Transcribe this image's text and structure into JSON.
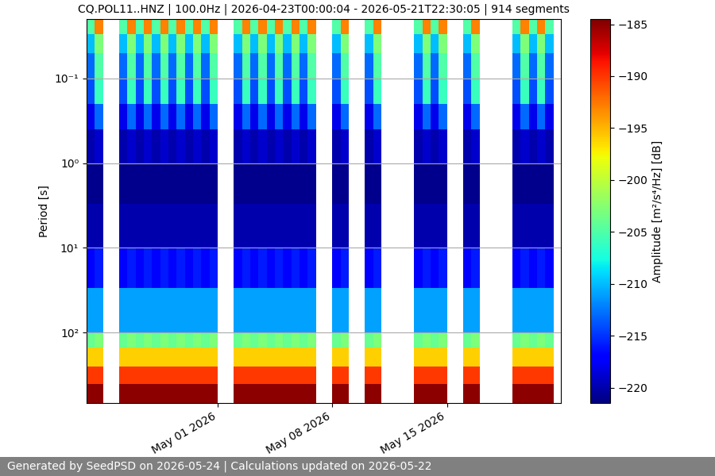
{
  "chart_data": {
    "type": "heatmap",
    "title": "CQ.POL11..HNZ | 100.0Hz | 2026-04-23T00:00:04 - 2026-05-21T22:30:05 | 914 segments",
    "y_label": "Period [s]",
    "footer": "Generated by SeedPSD on 2026-05-24 | Calculations updated on 2026-05-22",
    "log": "y",
    "grid": true,
    "color": "jet",
    "x": [
      "2026-04-23T00:00",
      "2026-04-23T12:00",
      "2026-04-24T00:00",
      "2026-04-24T12:00",
      "2026-04-25T00:00",
      "2026-04-25T12:00",
      "2026-04-26T00:00",
      "2026-04-26T12:00",
      "2026-04-27T00:00",
      "2026-04-27T12:00",
      "2026-04-28T00:00",
      "2026-04-28T12:00",
      "2026-04-29T00:00",
      "2026-04-29T12:00",
      "2026-04-30T00:00",
      "2026-04-30T12:00",
      "2026-05-01T00:00",
      "2026-05-01T12:00",
      "2026-05-02T00:00",
      "2026-05-02T12:00",
      "2026-05-03T00:00",
      "2026-05-03T12:00",
      "2026-05-04T00:00",
      "2026-05-04T12:00",
      "2026-05-05T00:00",
      "2026-05-05T12:00",
      "2026-05-06T00:00",
      "2026-05-06T12:00",
      "2026-05-07T00:00",
      "2026-05-07T12:00",
      "2026-05-08T00:00",
      "2026-05-08T12:00",
      "2026-05-09T00:00",
      "2026-05-09T12:00",
      "2026-05-10T00:00",
      "2026-05-10T12:00",
      "2026-05-11T00:00",
      "2026-05-11T12:00",
      "2026-05-12T00:00",
      "2026-05-12T12:00",
      "2026-05-13T00:00",
      "2026-05-13T12:00",
      "2026-05-14T00:00",
      "2026-05-14T12:00",
      "2026-05-15T00:00",
      "2026-05-15T12:00",
      "2026-05-16T00:00",
      "2026-05-16T12:00",
      "2026-05-17T00:00",
      "2026-05-17T12:00",
      "2026-05-18T00:00",
      "2026-05-18T12:00",
      "2026-05-19T00:00",
      "2026-05-19T12:00",
      "2026-05-20T00:00",
      "2026-05-20T12:00",
      "2026-05-21T00:00",
      "2026-05-21T12:00"
    ],
    "y": [
      0.02,
      0.03,
      0.05,
      0.1,
      0.2,
      0.4,
      1,
      3,
      10,
      30,
      100,
      150,
      250,
      400,
      680
    ],
    "xlim": [
      "2026-04-23T00:00:04",
      "2026-05-21T22:30:05"
    ],
    "xticks": [
      {
        "value": "2026-05-01",
        "label": "May 01 2026"
      },
      {
        "value": "2026-05-08",
        "label": "May 08 2026"
      },
      {
        "value": "2026-05-15",
        "label": "May 15 2026"
      }
    ],
    "ylim": [
      680,
      0.02
    ],
    "yticks": [
      {
        "value": 0.1,
        "label": "10⁻¹"
      },
      {
        "value": 1,
        "label": "10⁰"
      },
      {
        "value": 10,
        "label": "10¹"
      },
      {
        "value": 100,
        "label": "10²"
      }
    ],
    "colorbar": {
      "label": "Amplitude [m²/s⁴/Hz] [dB]",
      "range": [
        -221.5,
        -184.5
      ],
      "ticks": [
        {
          "value": -220,
          "label": "−220"
        },
        {
          "value": -215,
          "label": "−215"
        },
        {
          "value": -210,
          "label": "−210"
        },
        {
          "value": -205,
          "label": "−205"
        },
        {
          "value": -200,
          "label": "−200"
        },
        {
          "value": -195,
          "label": "−195"
        },
        {
          "value": -190,
          "label": "−190"
        },
        {
          "value": -185,
          "label": "−185"
        }
      ]
    },
    "cells": [
      [
        -205,
        -193,
        null,
        null,
        -205,
        -193,
        -205,
        -193,
        -205,
        -193,
        -205,
        -193,
        -205,
        -193,
        -205,
        -193,
        null,
        null,
        -205,
        -193,
        -205,
        -193,
        -205,
        -193,
        -205,
        -193,
        -205,
        -193,
        null,
        null,
        -205,
        -193,
        null,
        null,
        -205,
        -193,
        null,
        null,
        null,
        null,
        -205,
        -193,
        -205,
        -193,
        null,
        null,
        -205,
        -193,
        null,
        null,
        null,
        null,
        -205,
        -193,
        -205,
        -193,
        -205
      ],
      [
        -210,
        -203,
        null,
        null,
        -210,
        -203,
        -210,
        -203,
        -210,
        -203,
        -210,
        -203,
        -210,
        -203,
        -210,
        -203,
        null,
        null,
        -210,
        -203,
        -210,
        -203,
        -210,
        -203,
        -210,
        -203,
        -210,
        -203,
        null,
        null,
        -210,
        -203,
        null,
        null,
        -210,
        -203,
        null,
        null,
        null,
        null,
        -210,
        -203,
        -210,
        -203,
        null,
        null,
        -210,
        -203,
        null,
        null,
        null,
        null,
        -210,
        -203,
        -210,
        -203,
        -210
      ],
      [
        -213,
        -205,
        null,
        null,
        -213,
        -205,
        -213,
        -205,
        -213,
        -205,
        -213,
        -205,
        -213,
        -205,
        -213,
        -205,
        null,
        null,
        -213,
        -205,
        -213,
        -205,
        -213,
        -205,
        -213,
        -205,
        -213,
        -205,
        null,
        null,
        -213,
        -205,
        null,
        null,
        -213,
        -205,
        null,
        null,
        null,
        null,
        -213,
        -205,
        -213,
        -205,
        null,
        null,
        -213,
        -205,
        null,
        null,
        null,
        null,
        -213,
        -205,
        -213,
        -205,
        -213
      ],
      [
        -214,
        -206,
        null,
        null,
        -214,
        -206,
        -214,
        -206,
        -214,
        -206,
        -214,
        -206,
        -214,
        -206,
        -214,
        -206,
        null,
        null,
        -214,
        -206,
        -214,
        -206,
        -214,
        -206,
        -214,
        -206,
        -214,
        -206,
        null,
        null,
        -214,
        -206,
        null,
        null,
        -214,
        -206,
        null,
        null,
        null,
        null,
        -214,
        -206,
        -214,
        -206,
        null,
        null,
        -214,
        -206,
        null,
        null,
        null,
        null,
        -214,
        -206,
        -214,
        -206,
        -214
      ],
      [
        -218,
        -213,
        null,
        null,
        -218,
        -213,
        -218,
        -213,
        -218,
        -213,
        -218,
        -213,
        -218,
        -213,
        -218,
        -213,
        null,
        null,
        -218,
        -213,
        -218,
        -213,
        -218,
        -213,
        -218,
        -213,
        -218,
        -213,
        null,
        null,
        -218,
        -213,
        null,
        null,
        -218,
        -213,
        null,
        null,
        null,
        null,
        -218,
        -213,
        -218,
        -213,
        null,
        null,
        -218,
        -213,
        null,
        null,
        null,
        null,
        -218,
        -213,
        -218,
        -213,
        -218
      ],
      [
        -220,
        -219,
        null,
        null,
        -220,
        -219,
        -220,
        -219,
        -220,
        -219,
        -220,
        -219,
        -220,
        -219,
        -220,
        -219,
        null,
        null,
        -220,
        -219,
        -220,
        -219,
        -220,
        -219,
        -220,
        -219,
        -220,
        -219,
        null,
        null,
        -220,
        -219,
        null,
        null,
        -220,
        -219,
        null,
        null,
        null,
        null,
        -220,
        -219,
        -220,
        -219,
        null,
        null,
        -220,
        -219,
        null,
        null,
        null,
        null,
        -220,
        -219,
        -220,
        -219,
        -220
      ],
      [
        -221,
        -221,
        null,
        null,
        -221,
        -221,
        -221,
        -221,
        -221,
        -221,
        -221,
        -221,
        -221,
        -221,
        -221,
        -221,
        null,
        null,
        -221,
        -221,
        -221,
        -221,
        -221,
        -221,
        -221,
        -221,
        -221,
        -221,
        null,
        null,
        -221,
        -221,
        null,
        null,
        -221,
        -221,
        null,
        null,
        null,
        null,
        -221,
        -221,
        -221,
        -221,
        null,
        null,
        -221,
        -221,
        null,
        null,
        null,
        null,
        -221,
        -221,
        -221,
        -221,
        -221
      ],
      [
        -220,
        -220,
        null,
        null,
        -220,
        -220,
        -220,
        -220,
        -220,
        -220,
        -220,
        -220,
        -220,
        -220,
        -220,
        -220,
        null,
        null,
        -220,
        -220,
        -220,
        -220,
        -220,
        -220,
        -220,
        -220,
        -220,
        -220,
        null,
        null,
        -220,
        -220,
        null,
        null,
        -220,
        -220,
        null,
        null,
        null,
        null,
        -220,
        -220,
        -220,
        -220,
        null,
        null,
        -220,
        -220,
        null,
        null,
        null,
        null,
        -220,
        -220,
        -220,
        -220,
        -220
      ],
      [
        -217,
        -216,
        null,
        null,
        -217,
        -216,
        -217,
        -216,
        -217,
        -216,
        -217,
        -216,
        -217,
        -216,
        -217,
        -216,
        null,
        null,
        -217,
        -216,
        -217,
        -216,
        -217,
        -216,
        -217,
        -216,
        -217,
        -216,
        null,
        null,
        -217,
        -216,
        null,
        null,
        -217,
        -216,
        null,
        null,
        null,
        null,
        -217,
        -216,
        -217,
        -216,
        null,
        null,
        -217,
        -216,
        null,
        null,
        null,
        null,
        -217,
        -216,
        -217,
        -216,
        -217
      ],
      [
        -211,
        -211,
        null,
        null,
        -211,
        -211,
        -211,
        -211,
        -211,
        -211,
        -211,
        -211,
        -211,
        -211,
        -211,
        -211,
        null,
        null,
        -211,
        -211,
        -211,
        -211,
        -211,
        -211,
        -211,
        -211,
        -211,
        -211,
        null,
        null,
        -211,
        -211,
        null,
        null,
        -211,
        -211,
        null,
        null,
        null,
        null,
        -211,
        -211,
        -211,
        -211,
        null,
        null,
        -211,
        -211,
        null,
        null,
        null,
        null,
        -211,
        -211,
        -211,
        -211,
        -211
      ],
      [
        -204,
        -203,
        null,
        null,
        -204,
        -203,
        -204,
        -203,
        -204,
        -203,
        -204,
        -203,
        -204,
        -203,
        -204,
        -203,
        null,
        null,
        -204,
        -203,
        -204,
        -203,
        -204,
        -203,
        -204,
        -203,
        -204,
        -203,
        null,
        null,
        -204,
        -203,
        null,
        null,
        -204,
        -203,
        null,
        null,
        null,
        null,
        -204,
        -203,
        -204,
        -203,
        null,
        null,
        -204,
        -203,
        null,
        null,
        null,
        null,
        -204,
        -203,
        -204,
        -203,
        -204
      ],
      [
        -196,
        -196,
        null,
        null,
        -196,
        -196,
        -196,
        -196,
        -196,
        -196,
        -196,
        -196,
        -196,
        -196,
        -196,
        -196,
        null,
        null,
        -196,
        -196,
        -196,
        -196,
        -196,
        -196,
        -196,
        -196,
        -196,
        -196,
        null,
        null,
        -196,
        -196,
        null,
        null,
        -196,
        -196,
        null,
        null,
        null,
        null,
        -196,
        -196,
        -196,
        -196,
        null,
        null,
        -196,
        -196,
        null,
        null,
        null,
        null,
        -196,
        -196,
        -196,
        -196,
        -196
      ],
      [
        -190,
        -190,
        null,
        null,
        -190,
        -190,
        -190,
        -190,
        -190,
        -190,
        -190,
        -190,
        -190,
        -190,
        -190,
        -190,
        null,
        null,
        -190,
        -190,
        -190,
        -190,
        -190,
        -190,
        -190,
        -190,
        -190,
        -190,
        null,
        null,
        -190,
        -190,
        null,
        null,
        -190,
        -190,
        null,
        null,
        null,
        null,
        -190,
        -190,
        -190,
        -190,
        null,
        null,
        -190,
        -190,
        null,
        null,
        null,
        null,
        -190,
        -190,
        -190,
        -190,
        -190
      ],
      [
        -185,
        -185,
        null,
        null,
        -185,
        -185,
        -185,
        -185,
        -185,
        -185,
        -185,
        -185,
        -185,
        -185,
        -185,
        -185,
        null,
        null,
        -185,
        -185,
        -185,
        -185,
        -185,
        -185,
        -185,
        -185,
        -185,
        -185,
        null,
        null,
        -185,
        -185,
        null,
        null,
        -185,
        -185,
        null,
        null,
        null,
        null,
        -185,
        -185,
        -185,
        -185,
        null,
        null,
        -185,
        -185,
        null,
        null,
        null,
        null,
        -185,
        -185,
        -185,
        -185,
        -185
      ]
    ]
  }
}
